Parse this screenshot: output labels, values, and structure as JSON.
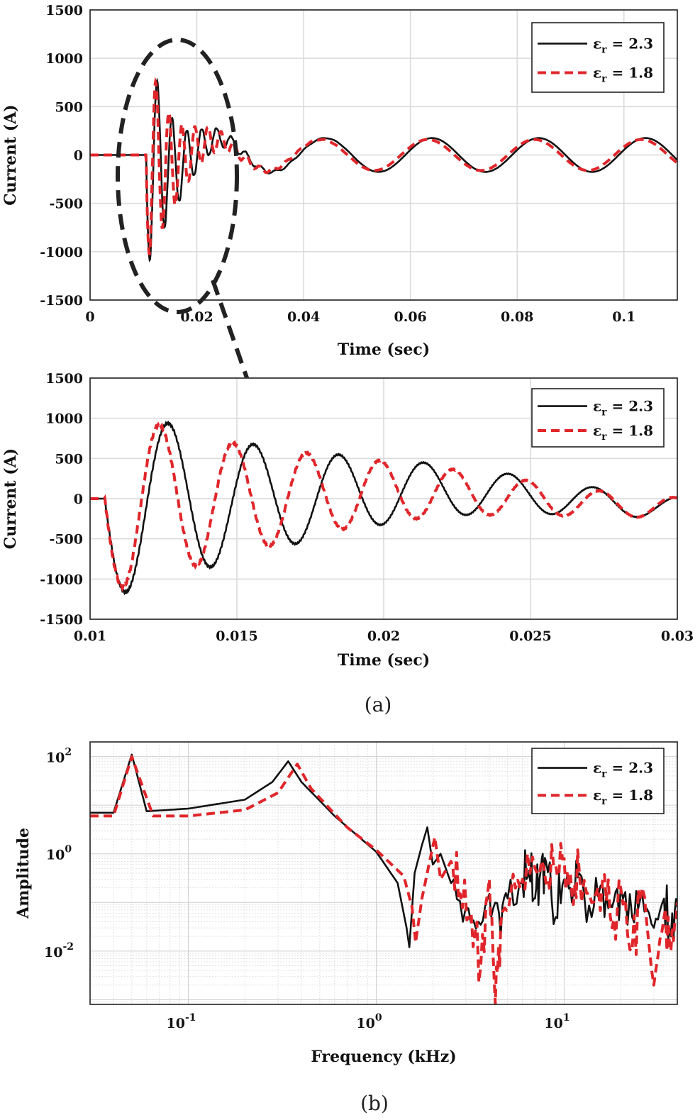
{
  "chart_data": [
    {
      "id": "a-top",
      "type": "line",
      "xlabel": "Time (sec)",
      "ylabel": "Current (A)",
      "xlim": [
        0,
        0.11
      ],
      "ylim": [
        -1500,
        1500
      ],
      "xticks": [
        0,
        0.02,
        0.04,
        0.06,
        0.08,
        0.1
      ],
      "xtick_labels": [
        "0",
        "0.02",
        "0.04",
        "0.06",
        "0.08",
        "0.1"
      ],
      "yticks": [
        -1500,
        -1000,
        -500,
        0,
        500,
        1000,
        1500
      ],
      "ytick_labels": [
        "-1500",
        "-1000",
        "-500",
        "0",
        "500",
        "1000",
        "1500"
      ],
      "grid": true,
      "legend_position": "top-right",
      "annotation": "dashed ellipse around 0.005-0.027 s transient with arrow pointing to zoomed view",
      "series": [
        {
          "name": "εr = 2.3",
          "legend_sym": "ε",
          "legend_sub": "r",
          "legend_value": " = 2.3",
          "color": "#111111",
          "dash": "none",
          "onset": 0.0105,
          "tr_amp": 1200,
          "tr_freq": 360,
          "tr_tau": 0.0055,
          "ss_amp": 175,
          "ss_freq": 50,
          "ss_phase": 0.3,
          "ss_rise": 0.004
        },
        {
          "name": "εr = 1.8",
          "legend_sym": "ε",
          "legend_sub": "r",
          "legend_value": " = 1.8",
          "color": "#e0262b",
          "dash": "12,7",
          "onset": 0.0105,
          "tr_amp": 1120,
          "tr_freq": 410,
          "tr_tau": 0.0058,
          "ss_amp": 160,
          "ss_freq": 50,
          "ss_phase": 0.55,
          "ss_rise": 0.004
        }
      ]
    },
    {
      "id": "a-zoom",
      "type": "line",
      "xlabel": "Time (sec)",
      "ylabel": "Current (A)",
      "xlim": [
        0.01,
        0.03
      ],
      "ylim": [
        -1500,
        1500
      ],
      "xticks": [
        0.01,
        0.015,
        0.02,
        0.025,
        0.03
      ],
      "xtick_labels": [
        "0.01",
        "0.015",
        "0.02",
        "0.025",
        "0.03"
      ],
      "yticks": [
        -1500,
        -1000,
        -500,
        0,
        500,
        1000,
        1500
      ],
      "ytick_labels": [
        "-1500",
        "-1000",
        "-500",
        "0",
        "500",
        "1000",
        "1500"
      ],
      "grid": true,
      "legend_position": "top-right",
      "series": [
        {
          "name": "εr = 2.3",
          "legend_sym": "ε",
          "legend_sub": "r",
          "legend_value": " = 2.3",
          "color": "#111111",
          "dash": "none",
          "onset": 0.0105,
          "tr_amp": 1250,
          "tr_freq": 345,
          "tr_tau": 0.0085,
          "ss_amp": 120,
          "ss_freq": 50,
          "ss_phase": 1.2,
          "ss_rise": 0.006
        },
        {
          "name": "εr = 1.8",
          "legend_sym": "ε",
          "legend_sub": "r",
          "legend_value": " = 1.8",
          "color": "#e0262b",
          "dash": "12,7",
          "onset": 0.0105,
          "tr_amp": 1170,
          "tr_freq": 400,
          "tr_tau": 0.0085,
          "ss_amp": 110,
          "ss_freq": 50,
          "ss_phase": 1.5,
          "ss_rise": 0.006
        }
      ]
    },
    {
      "id": "b-spectrum",
      "type": "line",
      "xscale": "log",
      "yscale": "log",
      "xlabel": "Frequency (kHz)",
      "ylabel": "Amplitude",
      "xlim": [
        0.03,
        40
      ],
      "ylim": [
        0.0008,
        200
      ],
      "xticks": [
        0.1,
        1,
        10
      ],
      "xtick_base": [
        "10",
        "10",
        "10"
      ],
      "xtick_exp": [
        "-1",
        "0",
        "1"
      ],
      "yticks": [
        0.01,
        1,
        100
      ],
      "ytick_base": [
        "10",
        "10",
        "10"
      ],
      "ytick_exp": [
        "-2",
        "0",
        "2"
      ],
      "grid": "major+minor",
      "legend_position": "top-right",
      "series": [
        {
          "name": "εr = 2.3",
          "legend_sym": "ε",
          "legend_sub": "r",
          "legend_value": " = 2.3",
          "color": "#111111",
          "dash": "none",
          "points": [
            [
              0.03,
              7
            ],
            [
              0.04,
              7
            ],
            [
              0.05,
              110
            ],
            [
              0.06,
              7.5
            ],
            [
              0.1,
              8.5
            ],
            [
              0.2,
              13
            ],
            [
              0.28,
              30
            ],
            [
              0.34,
              80
            ],
            [
              0.4,
              30
            ],
            [
              0.6,
              6
            ],
            [
              1.0,
              1.1
            ],
            [
              1.3,
              0.25
            ],
            [
              1.45,
              0.03
            ],
            [
              1.5,
              0.012
            ],
            [
              1.6,
              0.4
            ],
            [
              1.75,
              1.5
            ],
            [
              1.87,
              3.5
            ],
            [
              2.0,
              0.6
            ],
            [
              2.2,
              1.0
            ],
            [
              2.5,
              0.25
            ],
            [
              3.0,
              0.08
            ],
            [
              3.5,
              0.04
            ],
            [
              4.0,
              0.15
            ],
            [
              4.5,
              0.06
            ],
            [
              5.0,
              0.12
            ],
            [
              6.0,
              0.25
            ],
            [
              6.5,
              0.45
            ],
            [
              7.0,
              0.12
            ],
            [
              7.5,
              0.45
            ],
            [
              8.0,
              0.7
            ],
            [
              9.0,
              0.05
            ],
            [
              10.0,
              0.3
            ],
            [
              11.0,
              0.1
            ],
            [
              12.0,
              0.4
            ],
            [
              14.0,
              0.05
            ],
            [
              16.0,
              0.25
            ],
            [
              18.0,
              0.08
            ],
            [
              20.0,
              0.2
            ],
            [
              23.0,
              0.05
            ],
            [
              26.0,
              0.15
            ],
            [
              30.0,
              0.03
            ],
            [
              34.0,
              0.12
            ],
            [
              37.0,
              0.02
            ],
            [
              40.0,
              0.08
            ]
          ],
          "noise_from": 2.5,
          "noise_amp": 0.6
        },
        {
          "name": "εr = 1.8",
          "legend_sym": "ε",
          "legend_sub": "r",
          "legend_value": " = 1.8",
          "color": "#e0262b",
          "dash": "12,7",
          "points": [
            [
              0.03,
              6
            ],
            [
              0.04,
              6
            ],
            [
              0.05,
              100
            ],
            [
              0.065,
              6
            ],
            [
              0.1,
              6
            ],
            [
              0.2,
              8
            ],
            [
              0.3,
              18
            ],
            [
              0.38,
              70
            ],
            [
              0.45,
              22
            ],
            [
              0.7,
              3.5
            ],
            [
              1.0,
              1.2
            ],
            [
              1.4,
              0.35
            ],
            [
              1.55,
              0.08
            ],
            [
              1.62,
              0.015
            ],
            [
              1.75,
              0.12
            ],
            [
              1.95,
              0.9
            ],
            [
              2.05,
              2.2
            ],
            [
              2.2,
              0.3
            ],
            [
              2.5,
              0.7
            ],
            [
              2.8,
              0.15
            ],
            [
              3.2,
              0.06
            ],
            [
              3.6,
              0.005
            ],
            [
              4.0,
              0.3
            ],
            [
              4.3,
              0.0008
            ],
            [
              4.6,
              0.04
            ],
            [
              5.2,
              0.15
            ],
            [
              6.0,
              0.3
            ],
            [
              7.0,
              0.5
            ],
            [
              8.0,
              0.25
            ],
            [
              9.0,
              0.6
            ],
            [
              10.0,
              0.8
            ],
            [
              11.0,
              0.15
            ],
            [
              12.0,
              0.5
            ],
            [
              14.0,
              0.1
            ],
            [
              16.0,
              0.3
            ],
            [
              18.0,
              0.03
            ],
            [
              20.0,
              0.2
            ],
            [
              23.0,
              0.01
            ],
            [
              26.0,
              0.2
            ],
            [
              30.0,
              0.002
            ],
            [
              34.0,
              0.05
            ],
            [
              37.0,
              0.01
            ],
            [
              40.0,
              0.1
            ]
          ],
          "noise_from": 2.5,
          "noise_amp": 0.6
        }
      ]
    }
  ],
  "captions": {
    "a": "(a)",
    "b": "(b)"
  }
}
